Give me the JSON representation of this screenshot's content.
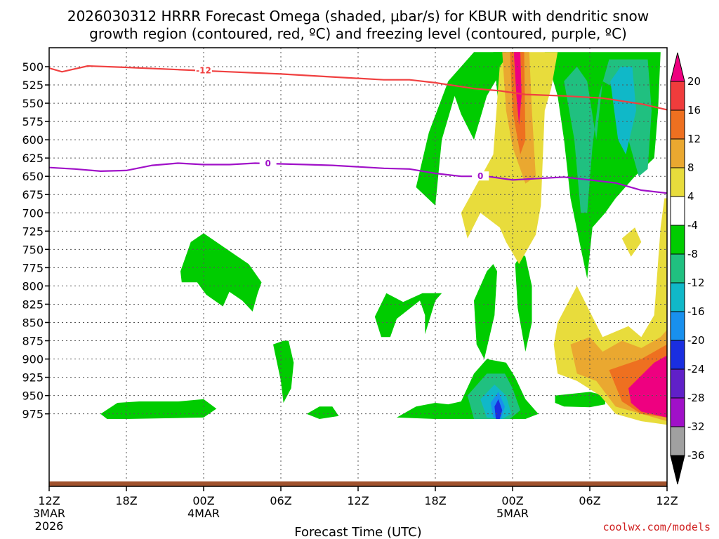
{
  "chart_data": {
    "type": "heatmap",
    "title_line1": "2026030312 HRRR Forecast Omega (shaded, μbar/s) for KBUR with dendritic snow",
    "title_line2": "growth region (contoured, red, ºC) and freezing level (contoured, purple, ºC)",
    "xlabel": "Forecast Time (UTC)",
    "x_ticks": [
      {
        "hour": 0,
        "label": "12Z",
        "sub1": "3MAR",
        "sub2": "2026"
      },
      {
        "hour": 6,
        "label": "18Z",
        "sub1": "",
        "sub2": ""
      },
      {
        "hour": 12,
        "label": "00Z",
        "sub1": "4MAR",
        "sub2": ""
      },
      {
        "hour": 18,
        "label": "06Z",
        "sub1": "",
        "sub2": ""
      },
      {
        "hour": 24,
        "label": "12Z",
        "sub1": "",
        "sub2": ""
      },
      {
        "hour": 30,
        "label": "18Z",
        "sub1": "",
        "sub2": ""
      },
      {
        "hour": 36,
        "label": "00Z",
        "sub1": "5MAR",
        "sub2": ""
      },
      {
        "hour": 42,
        "label": "06Z",
        "sub1": "",
        "sub2": ""
      },
      {
        "hour": 48,
        "label": "12Z",
        "sub1": "",
        "sub2": ""
      }
    ],
    "y_ticks": [
      500,
      525,
      550,
      575,
      600,
      625,
      650,
      675,
      700,
      725,
      750,
      775,
      800,
      825,
      850,
      875,
      900,
      925,
      950,
      975
    ],
    "colorbar": {
      "levels": [
        20,
        16,
        12,
        8,
        4,
        -4,
        -8,
        -12,
        -16,
        -20,
        -24,
        -28,
        -32,
        -36
      ],
      "colors": [
        "#ee0080",
        "#f03c3c",
        "#ee7020",
        "#eaa830",
        "#e8dc3c",
        "#ffffff",
        "#00cc00",
        "#20c080",
        "#10b8c8",
        "#1890ee",
        "#1a2ee0",
        "#6020c8",
        "#a010c8",
        "#a0a0a0",
        "#000000"
      ]
    },
    "fill_colors": {
      "gt20": "#ee0080",
      "16to20": "#f03c3c",
      "12to16": "#ee7020",
      "8to12": "#eaa830",
      "4to8": "#e8dc3c",
      "m8tom4": "#00cc00",
      "m12tom8": "#20c080",
      "m16tom12": "#10b8c8",
      "m20tom16": "#1890ee",
      "m24tom20": "#1a2ee0"
    },
    "contours": [
      {
        "label": "-12",
        "color": "#f04040",
        "points": [
          [
            0,
            502
          ],
          [
            1,
            507
          ],
          [
            3,
            499
          ],
          [
            6,
            501
          ],
          [
            10,
            504
          ],
          [
            14,
            507
          ],
          [
            18,
            510
          ],
          [
            22,
            514
          ],
          [
            26,
            518
          ],
          [
            28,
            518
          ],
          [
            30,
            522
          ],
          [
            33,
            530
          ],
          [
            35,
            533
          ],
          [
            37,
            538
          ],
          [
            40,
            540
          ],
          [
            43,
            543
          ],
          [
            46,
            551
          ],
          [
            48,
            559
          ]
        ]
      },
      {
        "label": "0",
        "color": "#a010c8",
        "points": [
          [
            0,
            638
          ],
          [
            2,
            640
          ],
          [
            4,
            643
          ],
          [
            6,
            642
          ],
          [
            8,
            635
          ],
          [
            10,
            632
          ],
          [
            12,
            634
          ],
          [
            14,
            634
          ],
          [
            16,
            632
          ],
          [
            18,
            633
          ],
          [
            20,
            634
          ],
          [
            22,
            635
          ],
          [
            24,
            637
          ],
          [
            26,
            639
          ],
          [
            28,
            640
          ],
          [
            30,
            646
          ],
          [
            32,
            650
          ],
          [
            34,
            650
          ],
          [
            36,
            655
          ],
          [
            38,
            653
          ],
          [
            40,
            651
          ],
          [
            42,
            655
          ],
          [
            44,
            659
          ],
          [
            46,
            669
          ],
          [
            48,
            673
          ]
        ]
      }
    ],
    "credit": "coolwx.com/models"
  }
}
